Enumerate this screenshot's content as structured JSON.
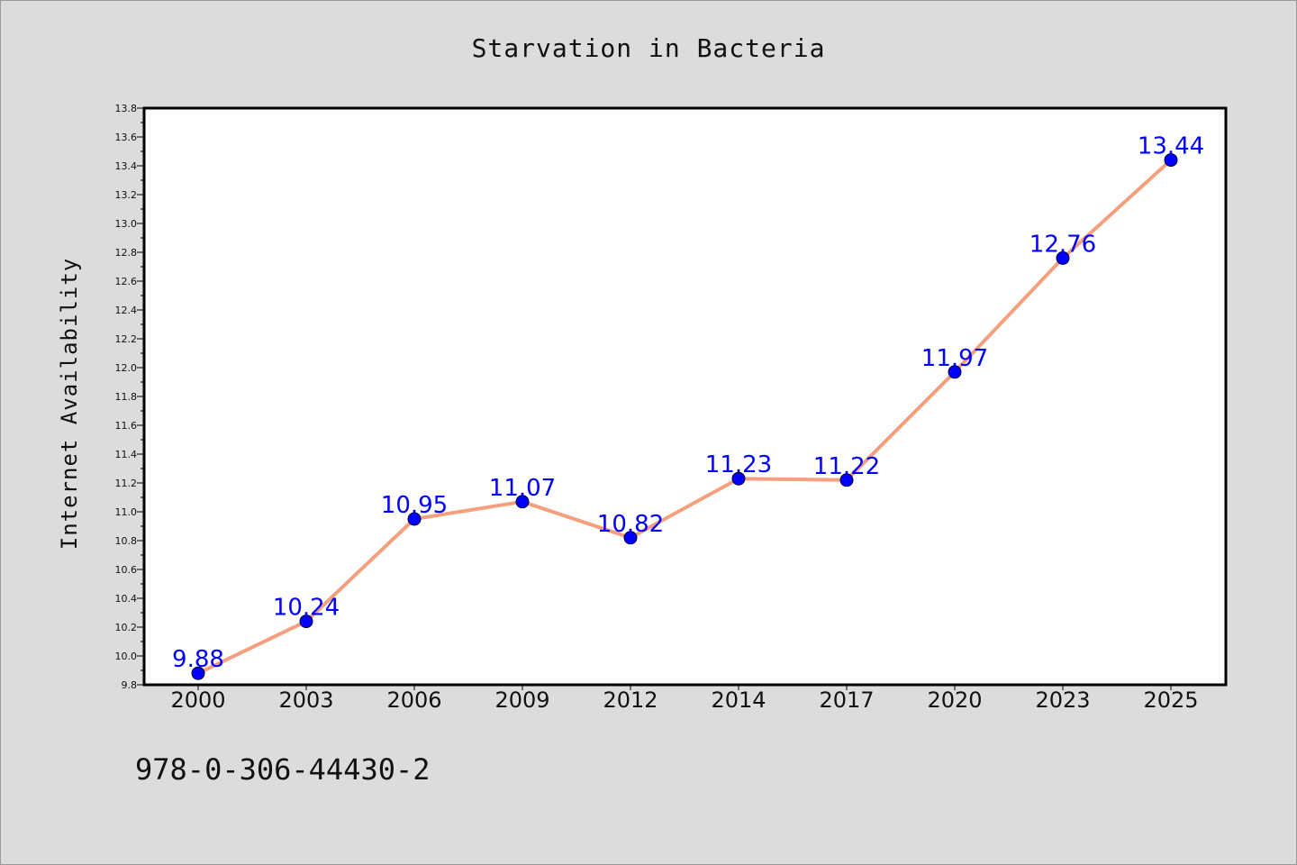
{
  "chart_data": {
    "type": "line",
    "title": "Starvation in Bacteria",
    "xlabel": "",
    "ylabel": "Internet Availability",
    "categories": [
      "2000",
      "2003",
      "2006",
      "2009",
      "2012",
      "2014",
      "2017",
      "2020",
      "2023",
      "2025"
    ],
    "series": [
      {
        "values": [
          9.88,
          10.24,
          10.95,
          11.07,
          10.82,
          11.23,
          11.22,
          11.97,
          12.76,
          13.44
        ],
        "labels": [
          "9.88",
          "10.24",
          "10.95",
          "11.07",
          "10.82",
          "11.23",
          "11.22",
          "11.97",
          "12.76",
          "13.44"
        ],
        "line_color": "#f4a07e",
        "marker_color": "#0000ff"
      }
    ],
    "ylim": [
      9.8,
      13.8
    ],
    "yticks": [
      "9.8",
      "10.0",
      "10.2",
      "10.4",
      "10.6",
      "10.8",
      "11.0",
      "11.2",
      "11.4",
      "11.6",
      "11.8",
      "12.0",
      "12.2",
      "12.4",
      "12.6",
      "12.8",
      "13.0",
      "13.2",
      "13.4",
      "13.6",
      "13.8"
    ],
    "grid": false,
    "legend": "none"
  },
  "footer": {
    "isbn": "978-0-306-44430-2"
  },
  "colors": {
    "background": "#dcdcdc",
    "plot_background": "#ffffff",
    "line": "#f4a07e",
    "marker": "#0000ff",
    "data_label": "#0000ff"
  }
}
